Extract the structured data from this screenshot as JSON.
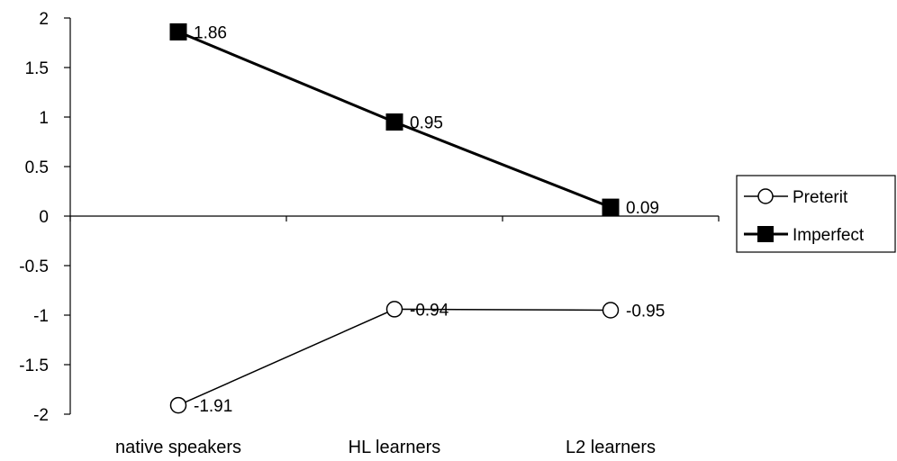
{
  "chart_data": {
    "type": "line",
    "title": "",
    "xlabel": "",
    "ylabel": "",
    "categories": [
      "native speakers",
      "HL learners",
      "L2 learners"
    ],
    "ylim": [
      -2,
      2
    ],
    "yticks": [
      2,
      1.5,
      1,
      0.5,
      0,
      -0.5,
      -1,
      -1.5,
      -2
    ],
    "ytick_labels": [
      "2",
      "1.5",
      "1",
      "0.5",
      "0",
      "-0.5",
      "-1",
      "-1.5",
      "-2"
    ],
    "grid": false,
    "legend_position": "right",
    "series": [
      {
        "name": "Preterit",
        "values": [
          -1.91,
          -0.94,
          -0.95
        ],
        "labels": [
          "-1.91",
          "-0.94",
          "-0.95"
        ],
        "marker": "open-circle",
        "color": "#000000"
      },
      {
        "name": "Imperfect",
        "values": [
          1.86,
          0.95,
          0.09
        ],
        "labels": [
          "1.86",
          "0.95",
          "0.09"
        ],
        "marker": "filled-square",
        "color": "#000000"
      }
    ]
  }
}
